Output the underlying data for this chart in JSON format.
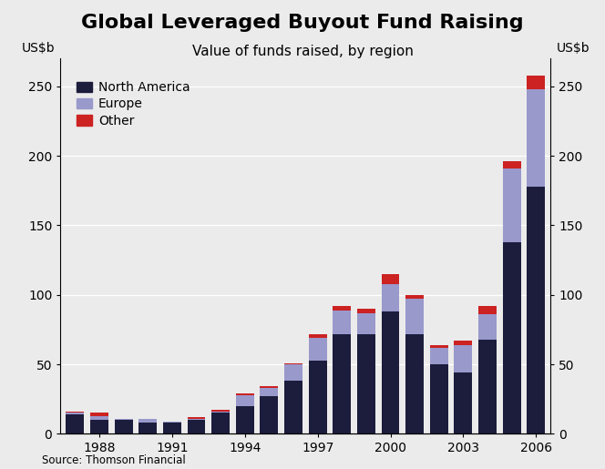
{
  "title": "Global Leveraged Buyout Fund Raising",
  "subtitle": "Value of funds raised, by region",
  "ylabel_left": "US$b",
  "ylabel_right": "US$b",
  "source": "Source: Thomson Financial",
  "years": [
    1987,
    1988,
    1989,
    1990,
    1991,
    1992,
    1993,
    1994,
    1995,
    1996,
    1997,
    1998,
    1999,
    2000,
    2001,
    2002,
    2003,
    2004,
    2005,
    2006
  ],
  "north_america": [
    14,
    10,
    10,
    8,
    8,
    10,
    15,
    20,
    27,
    38,
    53,
    72,
    72,
    88,
    72,
    50,
    44,
    68,
    138,
    178
  ],
  "europe": [
    1,
    3,
    1,
    3,
    1,
    1,
    1,
    8,
    6,
    12,
    16,
    17,
    15,
    20,
    25,
    12,
    20,
    18,
    53,
    70
  ],
  "other": [
    1,
    2,
    0,
    0,
    0,
    1,
    1,
    1,
    1,
    1,
    3,
    3,
    3,
    7,
    3,
    2,
    3,
    6,
    5,
    10
  ],
  "north_america_color": "#1c1c3c",
  "europe_color": "#9999cc",
  "other_color": "#cc2222",
  "ylim": [
    0,
    270
  ],
  "yticks": [
    0,
    50,
    100,
    150,
    200,
    250
  ],
  "background_color": "#ebebeb",
  "title_fontsize": 16,
  "subtitle_fontsize": 11,
  "tick_label_fontsize": 10,
  "legend_fontsize": 10,
  "bar_width": 0.75
}
